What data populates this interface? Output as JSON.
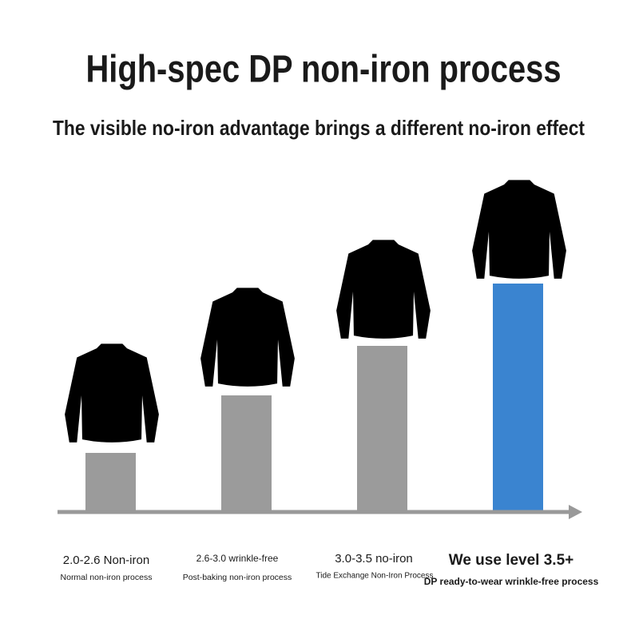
{
  "header": {
    "title": "High-spec DP non-iron process",
    "subtitle": "The visible no-iron advantage brings a different no-iron effect"
  },
  "levels": [
    {
      "label": "2.0-2.6 Non-iron",
      "sublabel": "Normal non-iron process"
    },
    {
      "label": "2.6-3.0 wrinkle-free",
      "sublabel": "Post-baking non-iron process"
    },
    {
      "label": "3.0-3.5 no-iron",
      "sublabel": "Tide Exchange Non-Iron Process"
    },
    {
      "label": "We use level 3.5+",
      "sublabel": "DP ready-to-wear wrinkle-free process"
    }
  ]
}
